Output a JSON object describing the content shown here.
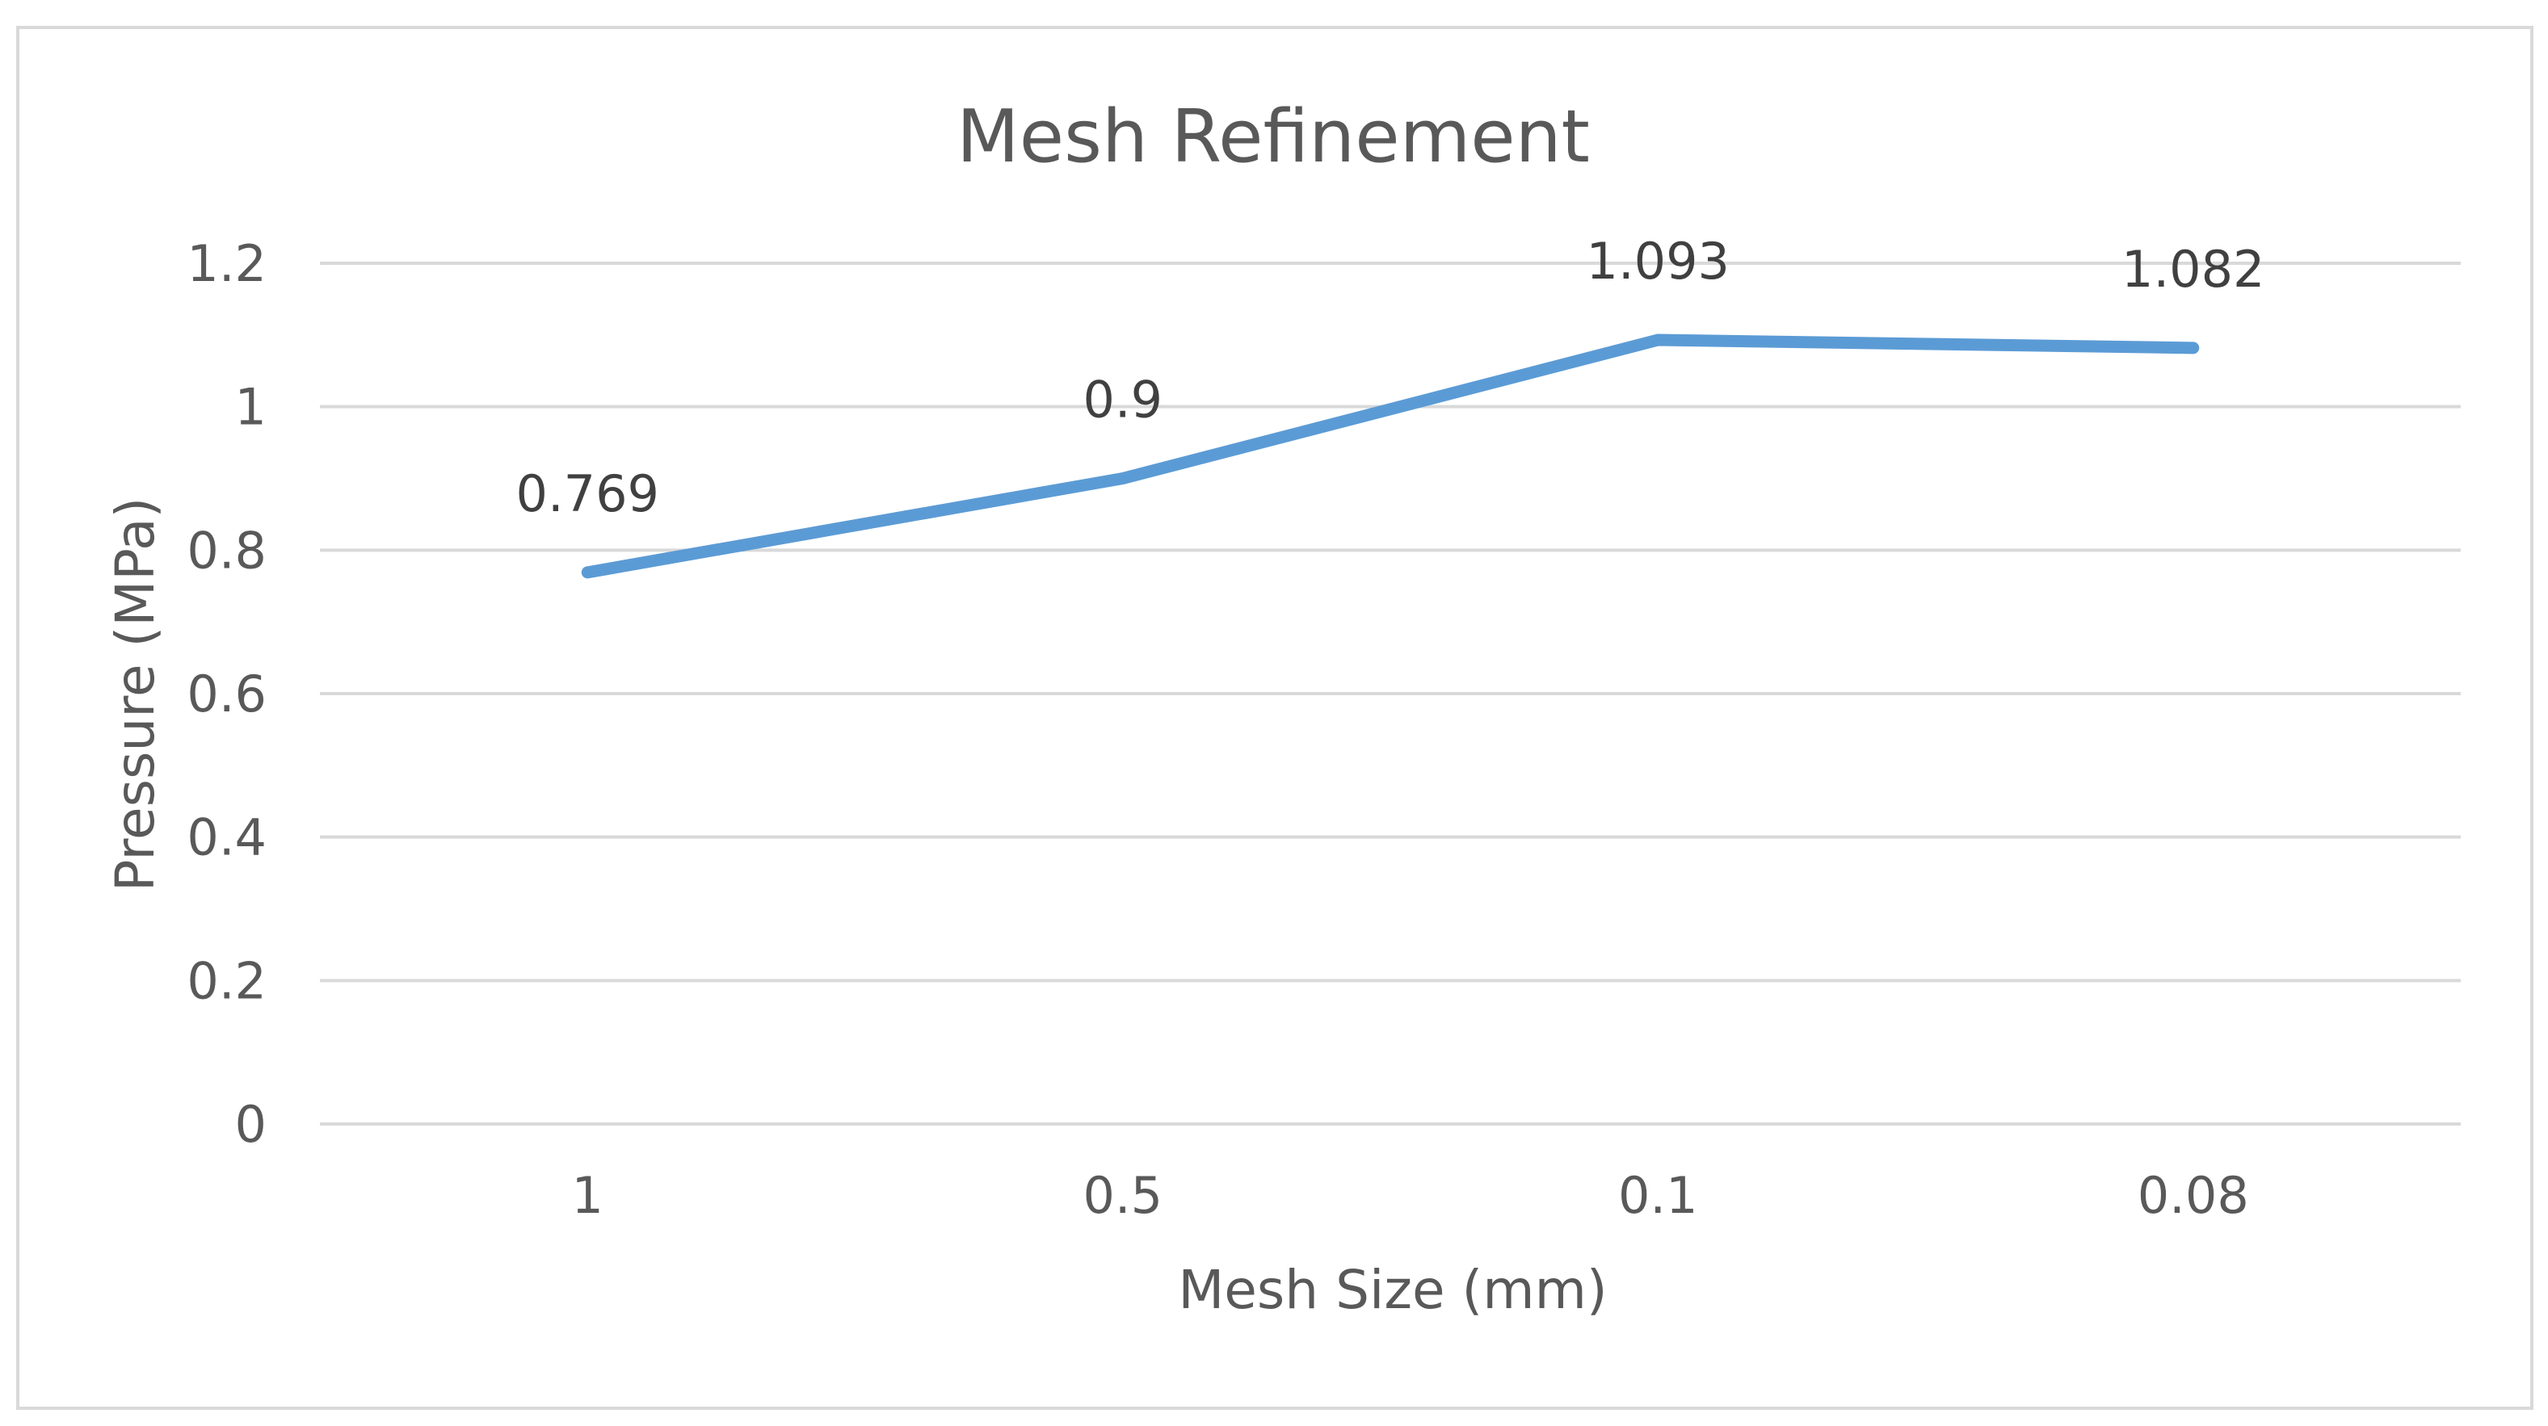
{
  "chart_data": {
    "type": "line",
    "title": "Mesh Refinement",
    "xlabel": "Mesh Size (mm)",
    "ylabel": "Pressure (MPa)",
    "categories": [
      "1",
      "0.5",
      "0.1",
      "0.08"
    ],
    "series": [
      {
        "values": [
          0.769,
          0.9,
          1.093,
          1.082
        ],
        "data_labels": [
          "0.769",
          "0.9",
          "1.093",
          "1.082"
        ],
        "color": "#5B9BD5"
      }
    ],
    "ylim": [
      0,
      1.2
    ],
    "yticks": [
      0,
      0.2,
      0.4,
      0.6,
      0.8,
      1,
      1.2
    ],
    "ytick_labels": [
      "0",
      "0.2",
      "0.4",
      "0.6",
      "0.8",
      "1",
      "1.2"
    ],
    "grid": true,
    "legend": "none"
  },
  "colors": {
    "gridline": "#D9D9D9",
    "frame_border": "#D9D9D9",
    "text": "#595959",
    "series_line": "#5B9BD5"
  }
}
